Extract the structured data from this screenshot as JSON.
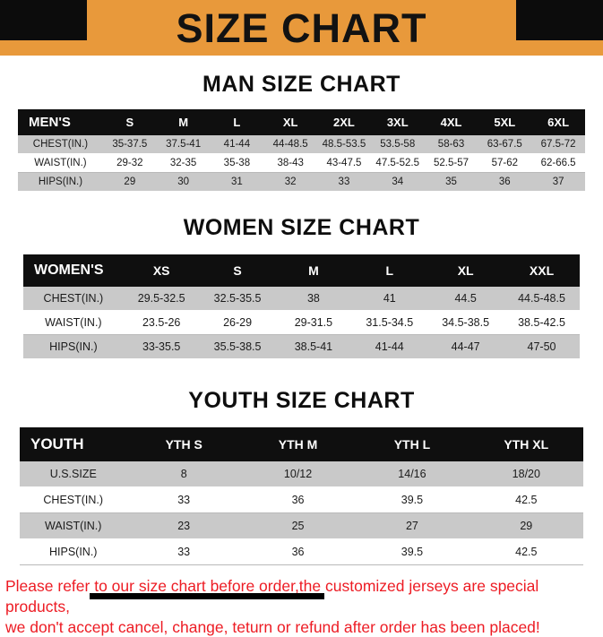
{
  "banner": {
    "title": "SIZE CHART"
  },
  "colors": {
    "banner_bg": "#e8993b",
    "header_black": "#0f0f0f",
    "row_gray": "#c9c9c9",
    "notice_red": "#ed1c24"
  },
  "sections": {
    "man": {
      "heading": "MAN SIZE CHART",
      "table": {
        "header": [
          "MEN'S",
          "S",
          "M",
          "L",
          "XL",
          "2XL",
          "3XL",
          "4XL",
          "5XL",
          "6XL"
        ],
        "rows": [
          [
            "CHEST(IN.)",
            "35-37.5",
            "37.5-41",
            "41-44",
            "44-48.5",
            "48.5-53.5",
            "53.5-58",
            "58-63",
            "63-67.5",
            "67.5-72"
          ],
          [
            "WAIST(IN.)",
            "29-32",
            "32-35",
            "35-38",
            "38-43",
            "43-47.5",
            "47.5-52.5",
            "52.5-57",
            "57-62",
            "62-66.5"
          ],
          [
            "HIPS(IN.)",
            "29",
            "30",
            "31",
            "32",
            "33",
            "34",
            "35",
            "36",
            "37"
          ]
        ]
      }
    },
    "women": {
      "heading": "WOMEN SIZE CHART",
      "table": {
        "header": [
          "WOMEN'S",
          "XS",
          "S",
          "M",
          "L",
          "XL",
          "XXL"
        ],
        "rows": [
          [
            "CHEST(IN.)",
            "29.5-32.5",
            "32.5-35.5",
            "38",
            "41",
            "44.5",
            "44.5-48.5"
          ],
          [
            "WAIST(IN.)",
            "23.5-26",
            "26-29",
            "29-31.5",
            "31.5-34.5",
            "34.5-38.5",
            "38.5-42.5"
          ],
          [
            "HIPS(IN.)",
            "33-35.5",
            "35.5-38.5",
            "38.5-41",
            "41-44",
            "44-47",
            "47-50"
          ]
        ]
      }
    },
    "youth": {
      "heading": "YOUTH SIZE CHART",
      "table": {
        "header": [
          "YOUTH",
          "YTH S",
          "YTH M",
          "YTH L",
          "YTH XL"
        ],
        "rows": [
          [
            "U.S.SIZE",
            "8",
            "10/12",
            "14/16",
            "18/20"
          ],
          [
            "CHEST(IN.)",
            "33",
            "36",
            "39.5",
            "42.5"
          ],
          [
            "WAIST(IN.)",
            "23",
            "25",
            "27",
            "29"
          ],
          [
            "HIPS(IN.)",
            "33",
            "36",
            "39.5",
            "42.5"
          ]
        ]
      }
    }
  },
  "footer": {
    "line1": "Please refer to our size chart before order,the customized jerseys are special products,",
    "line2": "we don't accept cancel, change, teturn or refund after order has been placed!"
  }
}
